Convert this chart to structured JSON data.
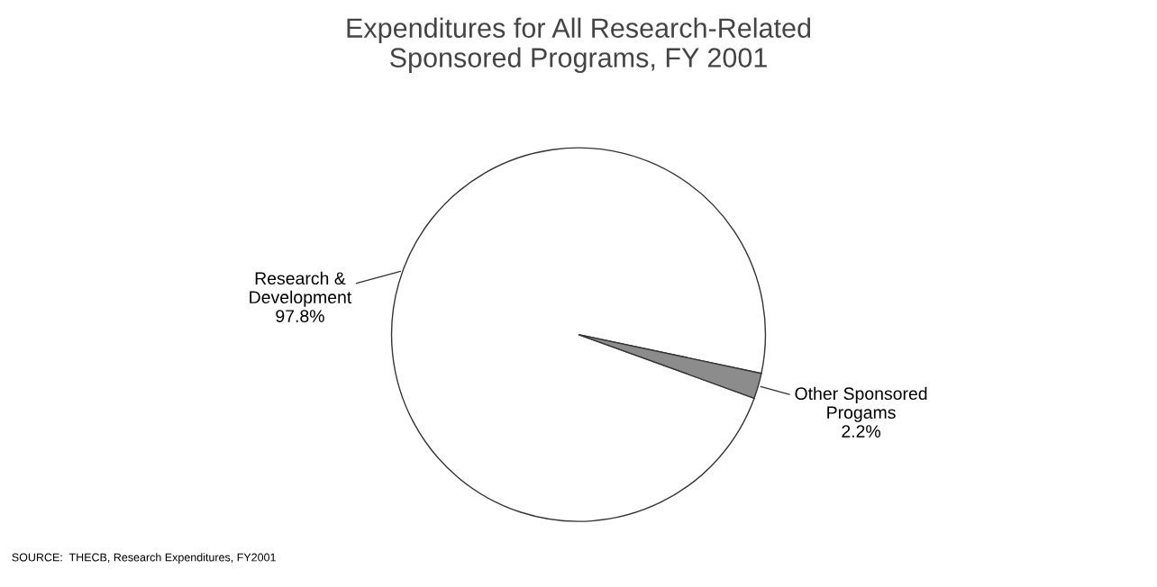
{
  "chart_data": {
    "type": "pie",
    "title": "Expenditures for All Research-Related\nSponsored Programs, FY 2001",
    "categories": [
      "Research &\nDevelopment",
      "Other Sponsored\nProgams"
    ],
    "values": [
      97.8,
      2.2
    ],
    "value_labels": [
      "97.8%",
      "2.2%"
    ],
    "colors": [
      "#ffffff",
      "#8c8c8c"
    ],
    "annotations": [
      "SOURCE:  THECB, Research Expenditures, FY2001"
    ]
  }
}
